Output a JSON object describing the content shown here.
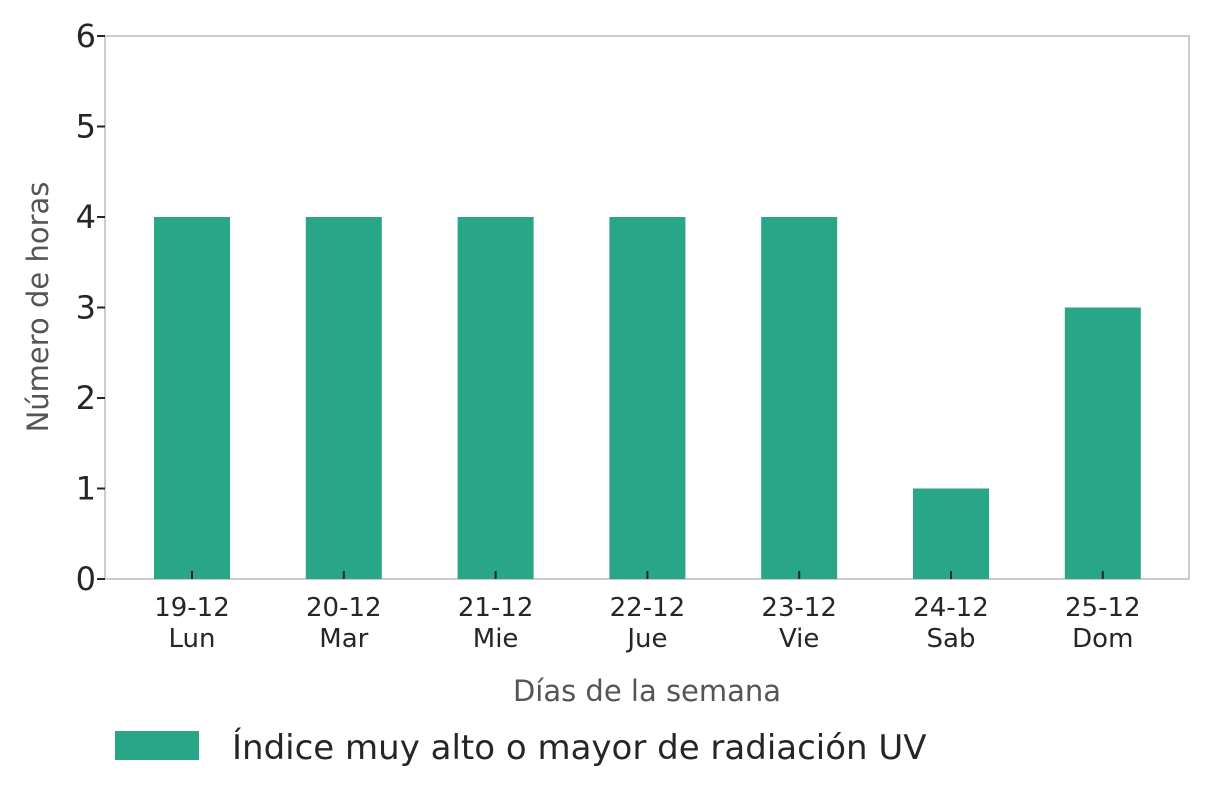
{
  "chart_data": {
    "type": "bar",
    "categories": [
      [
        "19-12",
        "Lun"
      ],
      [
        "20-12",
        "Mar"
      ],
      [
        "21-12",
        "Mie"
      ],
      [
        "22-12",
        "Jue"
      ],
      [
        "23-12",
        "Vie"
      ],
      [
        "24-12",
        "Sab"
      ],
      [
        "25-12",
        "Dom"
      ]
    ],
    "series": [
      {
        "name": "Índice muy alto o mayor de radiación UV",
        "values": [
          4,
          4,
          4,
          4,
          4,
          1,
          3
        ],
        "color": "#29a687"
      }
    ],
    "title": "",
    "xlabel": "Días de la semana",
    "ylabel": "Número de horas",
    "ylim": [
      0,
      6
    ],
    "yticks": [
      0,
      1,
      2,
      3,
      4,
      5,
      6
    ],
    "grid": false,
    "legend_position": "bottom-left"
  }
}
